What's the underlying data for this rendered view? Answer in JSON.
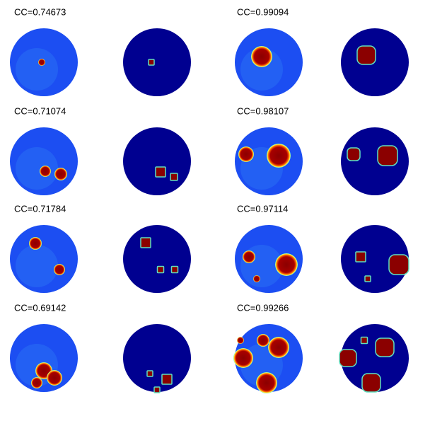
{
  "rows": [
    {
      "left_label": "CC=0.74673",
      "right_label": "CC=0.99094"
    },
    {
      "left_label": "CC=0.71074",
      "right_label": "CC=0.98107"
    },
    {
      "left_label": "CC=0.71784",
      "right_label": "CC=0.97114"
    },
    {
      "left_label": "CC=0.69142",
      "right_label": "CC=0.99266"
    }
  ]
}
